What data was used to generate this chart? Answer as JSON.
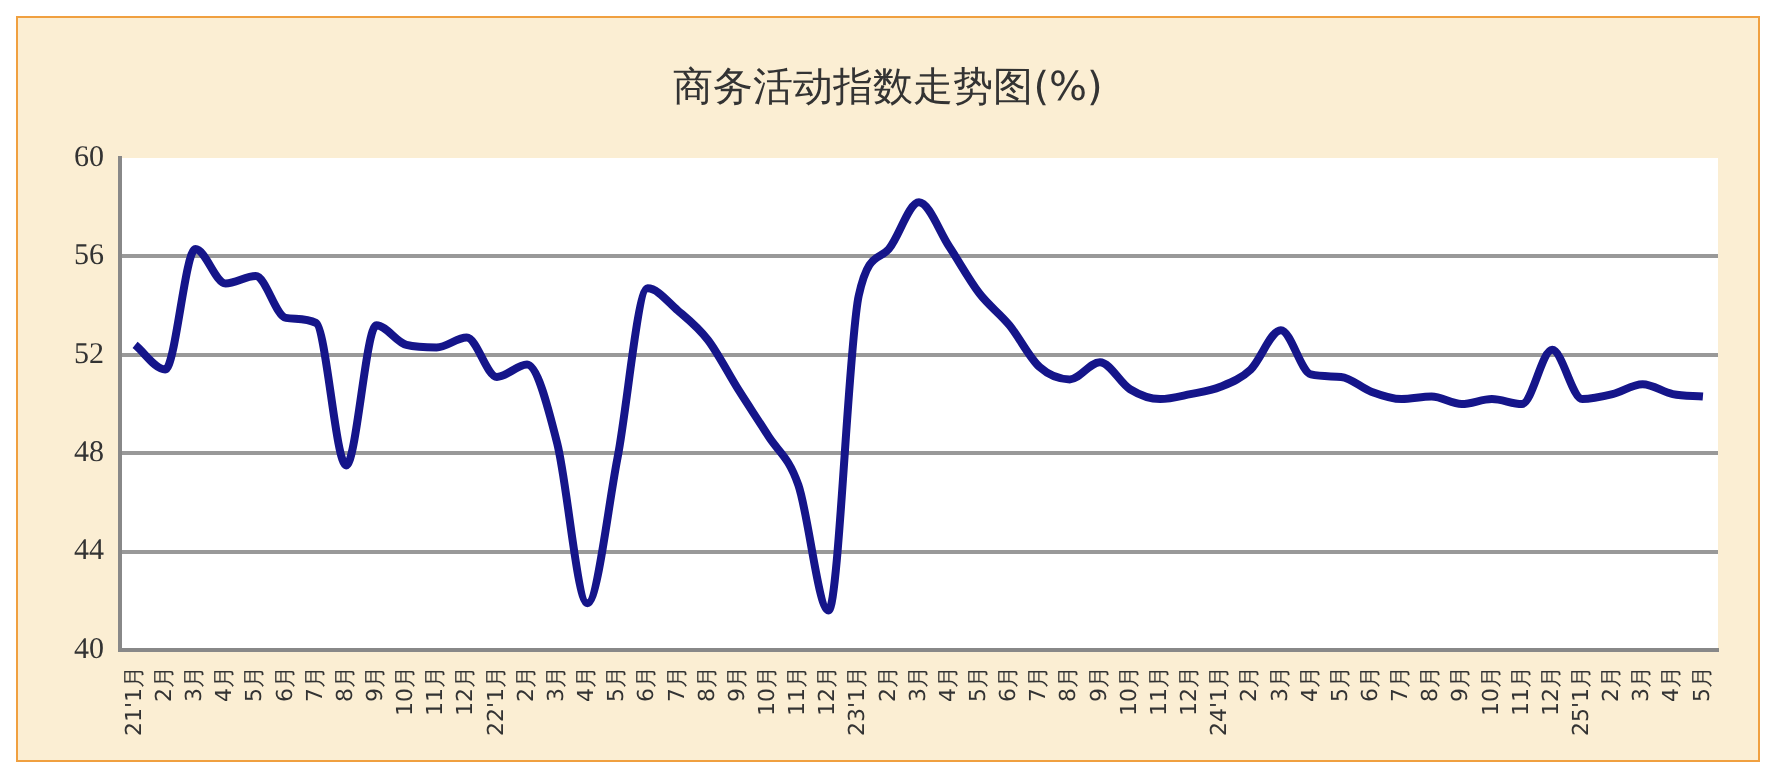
{
  "chart_data": {
    "type": "line",
    "title": "商务活动指数走势图(%)",
    "categories": [
      "21'1月",
      "2月",
      "3月",
      "4月",
      "5月",
      "6月",
      "7月",
      "8月",
      "9月",
      "10月",
      "11月",
      "12月",
      "22'1月",
      "2月",
      "3月",
      "4月",
      "5月",
      "6月",
      "7月",
      "8月",
      "9月",
      "10月",
      "11月",
      "12月",
      "23'1月",
      "2月",
      "3月",
      "4月",
      "5月",
      "6月",
      "7月",
      "8月",
      "9月",
      "10月",
      "11月",
      "12月",
      "24'1月",
      "2月",
      "3月",
      "4月",
      "5月",
      "6月",
      "7月",
      "8月",
      "9月",
      "10月",
      "11月",
      "12月",
      "25'1月",
      "2月",
      "3月",
      "4月",
      "5月"
    ],
    "series": [
      {
        "color": "#15158a",
        "values": [
          52.4,
          51.4,
          56.3,
          54.9,
          55.2,
          53.5,
          53.3,
          47.5,
          53.2,
          52.4,
          52.3,
          52.7,
          51.1,
          51.6,
          48.4,
          41.9,
          47.8,
          54.7,
          53.8,
          52.6,
          50.6,
          48.7,
          46.7,
          41.6,
          54.4,
          56.3,
          58.2,
          56.4,
          54.5,
          53.2,
          51.5,
          51.0,
          51.7,
          50.6,
          50.2,
          50.4,
          50.7,
          51.4,
          53.0,
          51.2,
          51.1,
          50.5,
          50.2,
          50.3,
          50.0,
          50.2,
          50.0,
          52.2,
          50.2,
          50.4,
          50.8,
          50.4,
          50.3
        ]
      }
    ],
    "ylim": [
      40,
      60
    ],
    "yticks": [
      40,
      44,
      48,
      52,
      56,
      60
    ],
    "grid": "y",
    "legend": false,
    "marker": "none",
    "line_style": "solid"
  }
}
